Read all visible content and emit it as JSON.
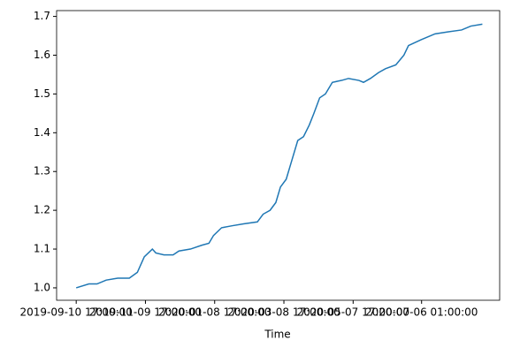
{
  "chart_data": {
    "type": "line",
    "xlabel": "Time",
    "x": [
      "2019-09-10 17:00:00",
      "2019-09-21 17:00:00",
      "2019-09-28 17:00:00",
      "2019-10-06 17:00:00",
      "2019-10-16 17:00:00",
      "2019-10-26 17:00:00",
      "2019-11-02 17:00:00",
      "2019-11-08 17:00:00",
      "2019-11-15 17:00:00",
      "2019-11-18 17:00:00",
      "2019-11-25 17:00:00",
      "2019-12-03 17:00:00",
      "2019-12-08 17:00:00",
      "2019-12-18 17:00:00",
      "2019-12-28 17:00:00",
      "2020-01-03 17:00:00",
      "2020-01-07 17:00:00",
      "2020-01-14 17:00:00",
      "2020-01-23 17:00:00",
      "2020-02-02 17:00:00",
      "2020-02-14 17:00:00",
      "2020-02-19 17:00:00",
      "2020-02-25 17:00:00",
      "2020-03-01 17:00:00",
      "2020-03-05 17:00:00",
      "2020-03-10 17:00:00",
      "2020-03-14 17:00:00",
      "2020-03-20 17:00:00",
      "2020-03-25 17:00:00",
      "2020-03-30 17:00:00",
      "2020-04-03 17:00:00",
      "2020-04-08 17:00:00",
      "2020-04-13 17:00:00",
      "2020-04-19 17:00:00",
      "2020-04-27 17:00:00",
      "2020-05-03 17:00:00",
      "2020-05-12 17:00:00",
      "2020-05-16 17:00:00",
      "2020-05-22 17:00:00",
      "2020-05-29 17:00:00",
      "2020-06-04 17:00:00",
      "2020-06-13 17:00:00",
      "2020-06-20 17:00:00",
      "2020-06-24 17:00:00",
      "2020-07-05 17:00:00",
      "2020-07-17 17:00:00",
      "2020-07-28 17:00:00",
      "2020-08-09 17:00:00",
      "2020-08-17 17:00:00",
      "2020-08-27 17:00:00"
    ],
    "series": [
      {
        "color": "#1f77b4",
        "values": [
          1.0,
          1.01,
          1.01,
          1.02,
          1.025,
          1.025,
          1.04,
          1.08,
          1.1,
          1.09,
          1.085,
          1.085,
          1.095,
          1.1,
          1.11,
          1.115,
          1.135,
          1.155,
          1.16,
          1.165,
          1.17,
          1.19,
          1.2,
          1.22,
          1.26,
          1.28,
          1.32,
          1.38,
          1.39,
          1.42,
          1.45,
          1.49,
          1.5,
          1.53,
          1.535,
          1.54,
          1.535,
          1.53,
          1.54,
          1.555,
          1.565,
          1.575,
          1.6,
          1.625,
          1.64,
          1.655,
          1.66,
          1.665,
          1.675,
          1.68
        ]
      }
    ],
    "xlim": [
      "2019-08-24 17:00:00",
      "2020-09-11 17:00:00"
    ],
    "xticks": [
      "2019-09-10 17:00:00",
      "2019-11-09 17:00:00",
      "2020-01-08 17:00:00",
      "2020-03-08 17:00:00",
      "2020-05-07 17:00:00",
      "2020-07-06 01:00:00"
    ],
    "ylim": [
      0.968,
      1.715
    ],
    "yticks": [
      {
        "value": 1,
        "label": "1.0"
      },
      1.1,
      1.2,
      1.3,
      1.4,
      1.5,
      1.6,
      1.7
    ]
  }
}
